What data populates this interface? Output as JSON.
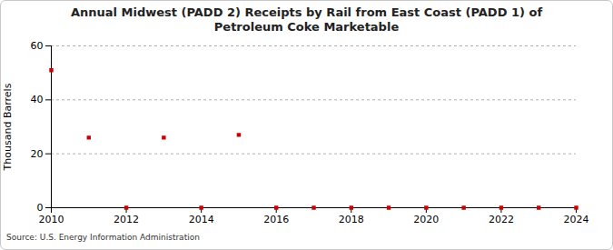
{
  "chart_data": {
    "type": "scatter",
    "title": "Annual Midwest (PADD 2) Receipts by Rail from East Coast (PADD 1) of Petroleum Coke Marketable",
    "ylabel": "Thousand Barrels",
    "source": "Source: U.S. Energy Information Administration",
    "x": [
      2010,
      2011,
      2012,
      2013,
      2014,
      2015,
      2016,
      2017,
      2018,
      2019,
      2020,
      2021,
      2022,
      2023,
      2024
    ],
    "values": [
      51,
      26,
      0,
      26,
      0,
      27,
      0,
      0,
      0,
      0,
      0,
      0,
      0,
      0,
      0
    ],
    "color": "#cc0000",
    "marker": "square",
    "xlim": [
      2010,
      2024
    ],
    "xticks": [
      2010,
      2012,
      2014,
      2016,
      2018,
      2020,
      2022,
      2024
    ],
    "ylim": [
      0,
      60
    ],
    "yticks": [
      0,
      20,
      40,
      60
    ],
    "grid": true
  }
}
